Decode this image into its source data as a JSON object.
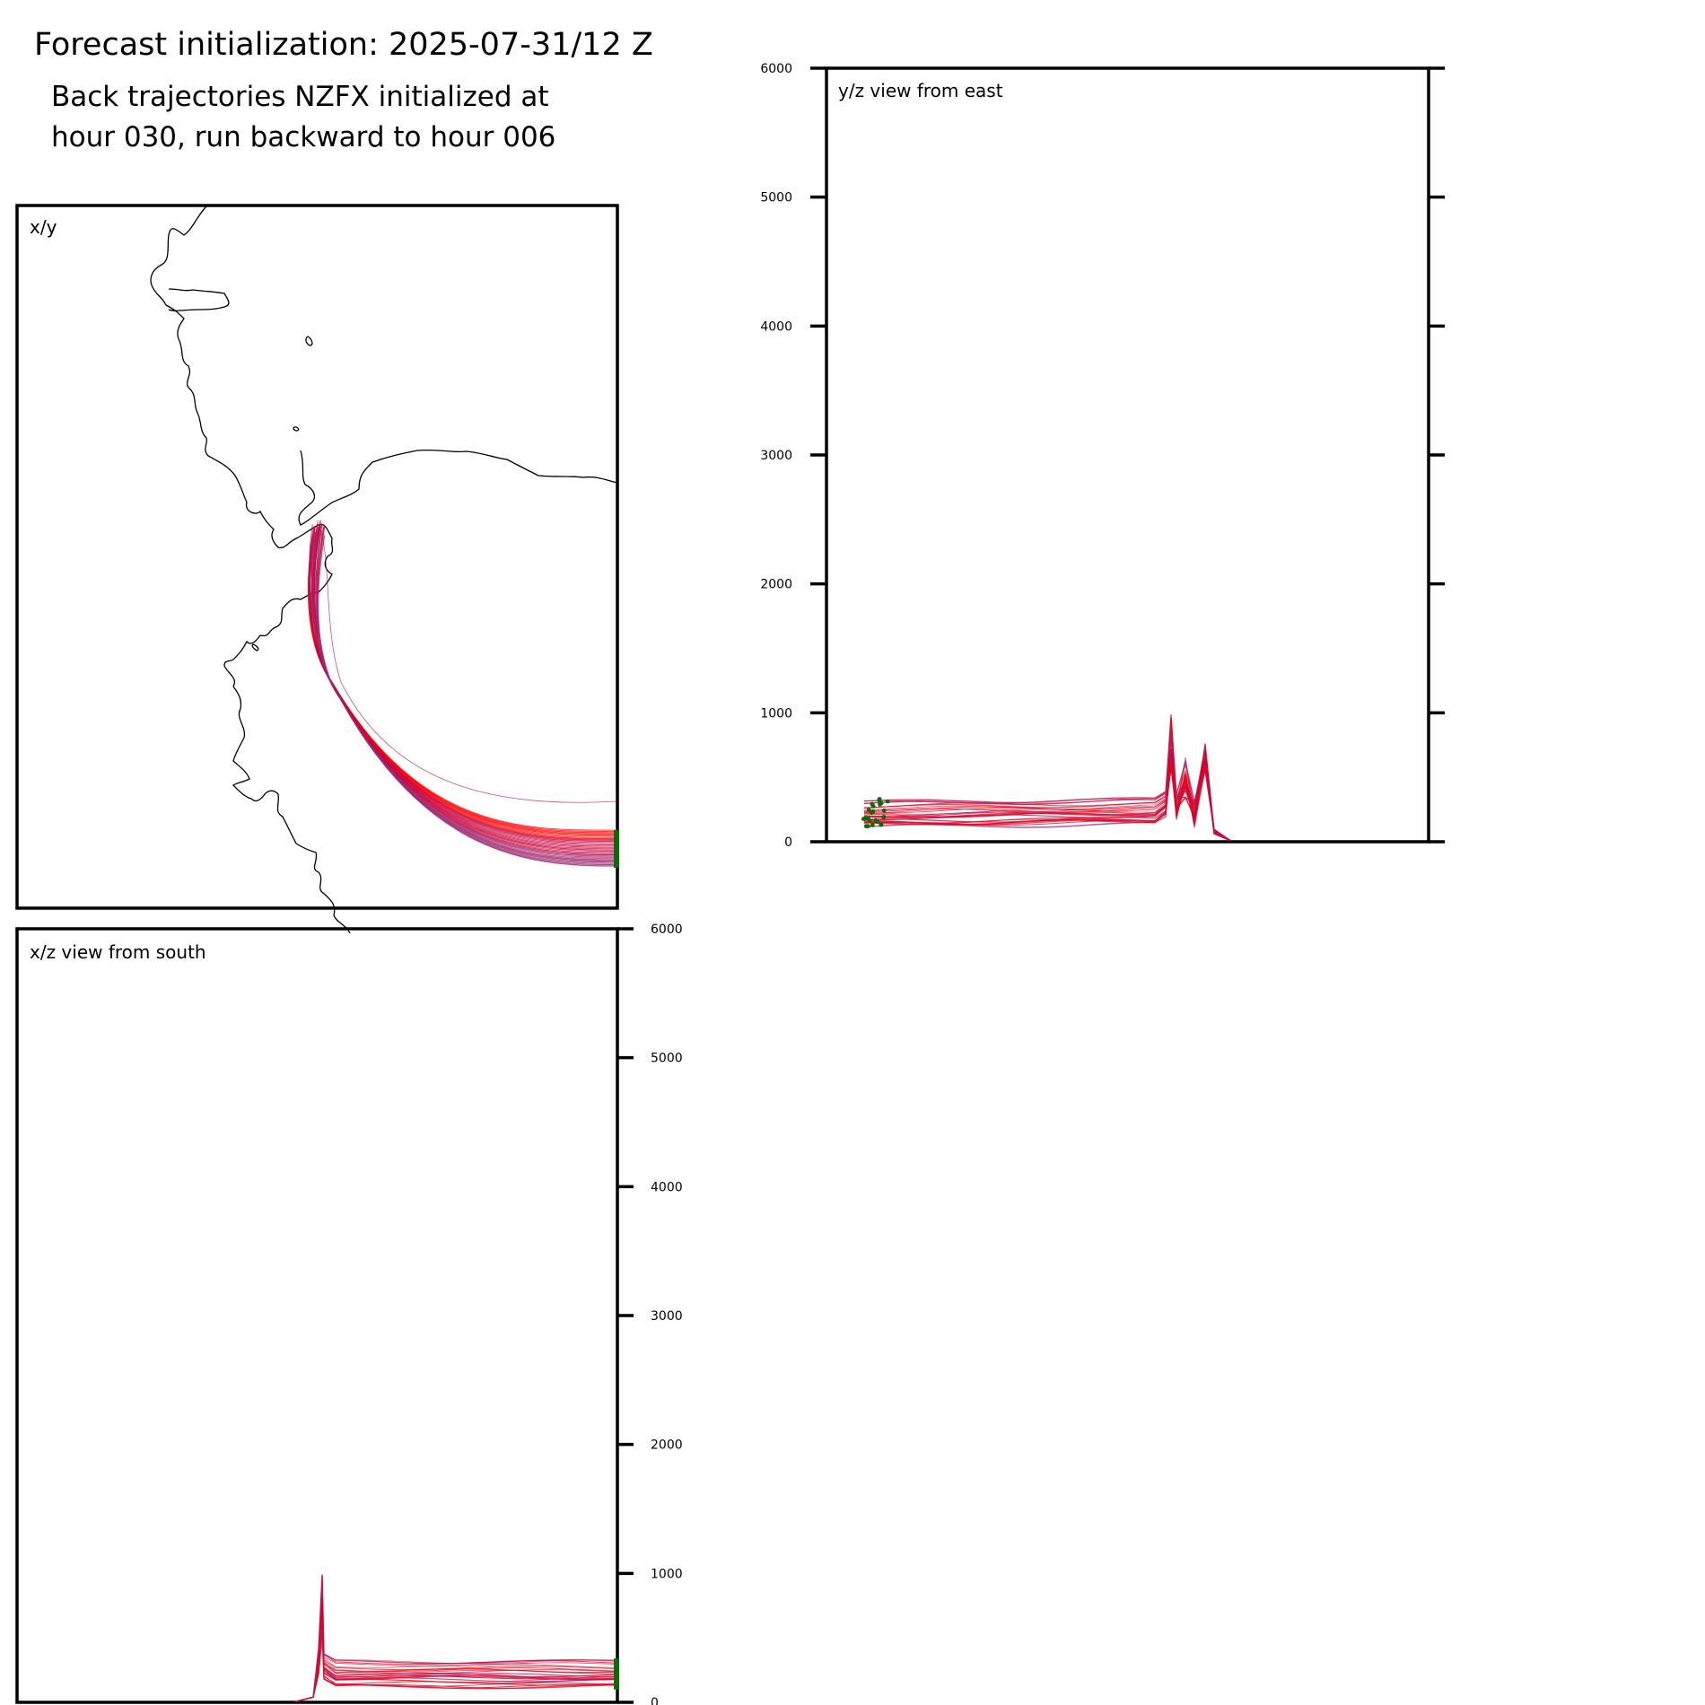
{
  "header": {
    "title": "Forecast initialization: 2025-07-31/12 Z",
    "subtitle_line1": "Back trajectories NZFX initialized at",
    "subtitle_line2": "hour 030, run backward to hour 006"
  },
  "colors": {
    "trajectory_bright": "#ff0000",
    "trajectory_dark": "#c8003c",
    "trajectory_purple": "#a0246e",
    "start_points": "#0b6b0b",
    "coastline": "#000000"
  },
  "chart_data": [
    {
      "type": "line",
      "panel": "map",
      "label": "x/y",
      "axis_ticks": "none",
      "series_count_approx": 30
    },
    {
      "type": "line",
      "panel": "yz",
      "label": "y/z view from east",
      "ylim": [
        0,
        6000
      ],
      "yticks": [
        0,
        1000,
        2000,
        3000,
        4000,
        5000,
        6000
      ],
      "ytick_labels": [
        "0",
        "1000",
        "2000",
        "3000",
        "4000",
        "5000",
        "6000"
      ],
      "ylabel_side": "left",
      "baseline_heights": [
        130,
        160,
        190,
        220,
        250,
        280,
        310
      ],
      "peak_heights": [
        1000,
        760,
        660
      ],
      "start_height_range": [
        100,
        340
      ]
    },
    {
      "type": "line",
      "panel": "xz",
      "label": "x/z view from south",
      "ylim": [
        0,
        6000
      ],
      "yticks": [
        0,
        1000,
        2000,
        3000,
        4000,
        5000,
        6000
      ],
      "ytick_labels": [
        "0",
        "1000",
        "2000",
        "3000",
        "4000",
        "5000",
        "6000"
      ],
      "ylabel_side": "right",
      "baseline_heights": [
        130,
        160,
        190,
        220,
        250,
        280,
        310
      ],
      "peak_heights": [
        1000
      ],
      "start_height_range": [
        100,
        340
      ]
    }
  ]
}
